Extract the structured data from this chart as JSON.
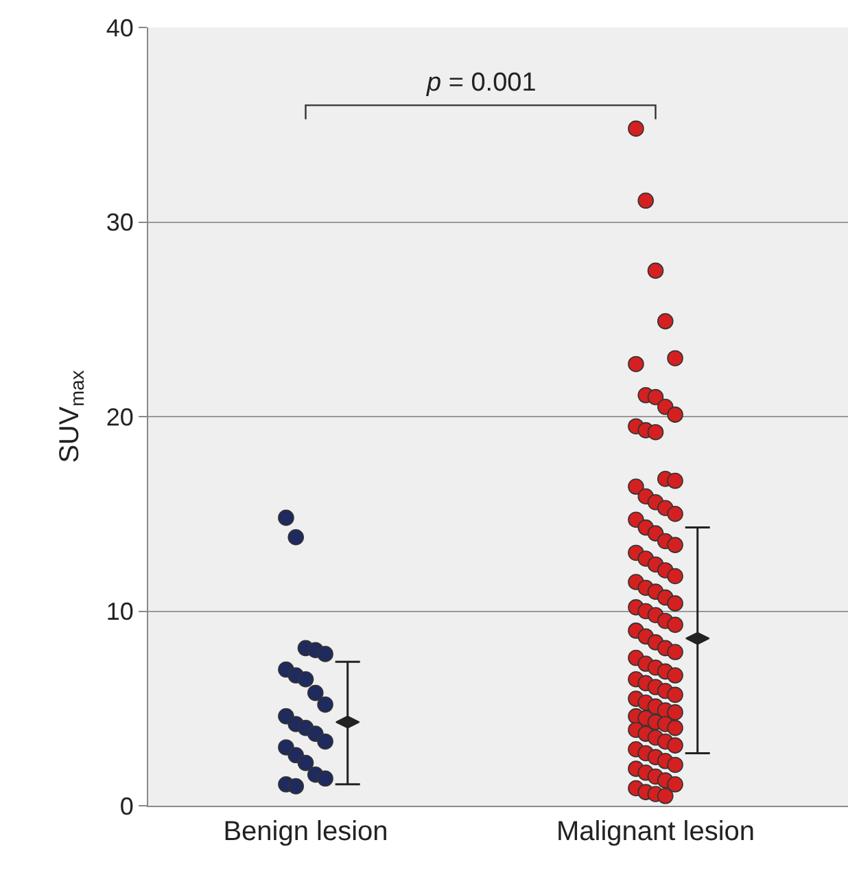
{
  "chart_data": {
    "type": "scatter",
    "ylabel": "SUV$_{max}$",
    "categories": [
      "Benign lesion",
      "Malignant lesion"
    ],
    "ylim": [
      0,
      40
    ],
    "yticks": [
      0,
      10,
      20,
      30,
      40
    ],
    "grid": "y",
    "marker": "circle",
    "annotations": [
      "p = 0.001"
    ],
    "series": [
      {
        "type": "scatter",
        "color": "#1f2a5e",
        "x": [
          "Benign lesion",
          "Benign lesion",
          "Benign lesion",
          "Benign lesion",
          "Benign lesion",
          "Benign lesion",
          "Benign lesion",
          "Benign lesion",
          "Benign lesion",
          "Benign lesion",
          "Benign lesion",
          "Benign lesion",
          "Benign lesion",
          "Benign lesion",
          "Benign lesion",
          "Benign lesion",
          "Benign lesion",
          "Benign lesion",
          "Benign lesion",
          "Benign lesion",
          "Benign lesion",
          "Benign lesion"
        ],
        "values": [
          14.8,
          13.8,
          8.1,
          8.0,
          7.8,
          7.0,
          6.7,
          6.5,
          5.8,
          5.2,
          4.6,
          4.2,
          4.0,
          3.7,
          3.3,
          3.0,
          2.6,
          2.2,
          1.6,
          1.4,
          1.1,
          1.0
        ]
      },
      {
        "type": "scatter",
        "color": "#d42020",
        "x": [
          "Malignant lesion",
          "Malignant lesion",
          "Malignant lesion",
          "Malignant lesion",
          "Malignant lesion",
          "Malignant lesion",
          "Malignant lesion",
          "Malignant lesion",
          "Malignant lesion",
          "Malignant lesion",
          "Malignant lesion",
          "Malignant lesion",
          "Malignant lesion",
          "Malignant lesion",
          "Malignant lesion",
          "Malignant lesion",
          "Malignant lesion",
          "Malignant lesion",
          "Malignant lesion",
          "Malignant lesion",
          "Malignant lesion",
          "Malignant lesion",
          "Malignant lesion",
          "Malignant lesion",
          "Malignant lesion",
          "Malignant lesion",
          "Malignant lesion",
          "Malignant lesion",
          "Malignant lesion",
          "Malignant lesion",
          "Malignant lesion",
          "Malignant lesion",
          "Malignant lesion",
          "Malignant lesion",
          "Malignant lesion",
          "Malignant lesion",
          "Malignant lesion",
          "Malignant lesion",
          "Malignant lesion",
          "Malignant lesion",
          "Malignant lesion",
          "Malignant lesion",
          "Malignant lesion",
          "Malignant lesion",
          "Malignant lesion",
          "Malignant lesion",
          "Malignant lesion",
          "Malignant lesion",
          "Malignant lesion",
          "Malignant lesion",
          "Malignant lesion",
          "Malignant lesion",
          "Malignant lesion",
          "Malignant lesion",
          "Malignant lesion",
          "Malignant lesion",
          "Malignant lesion",
          "Malignant lesion",
          "Malignant lesion",
          "Malignant lesion",
          "Malignant lesion",
          "Malignant lesion",
          "Malignant lesion",
          "Malignant lesion",
          "Malignant lesion",
          "Malignant lesion",
          "Malignant lesion",
          "Malignant lesion",
          "Malignant lesion",
          "Malignant lesion",
          "Malignant lesion",
          "Malignant lesion",
          "Malignant lesion",
          "Malignant lesion",
          "Malignant lesion",
          "Malignant lesion",
          "Malignant lesion",
          "Malignant lesion",
          "Malignant lesion",
          "Malignant lesion",
          "Malignant lesion",
          "Malignant lesion",
          "Malignant lesion",
          "Malignant lesion"
        ],
        "values": [
          34.8,
          31.1,
          27.5,
          24.9,
          23.0,
          22.7,
          21.1,
          21.0,
          20.5,
          20.1,
          19.5,
          19.3,
          19.2,
          16.8,
          16.7,
          16.4,
          15.9,
          15.6,
          15.3,
          15.0,
          14.7,
          14.3,
          14.0,
          13.6,
          13.4,
          13.0,
          12.7,
          12.4,
          12.1,
          11.8,
          11.5,
          11.2,
          11.0,
          10.7,
          10.4,
          10.2,
          10.0,
          9.8,
          9.5,
          9.3,
          9.0,
          8.7,
          8.4,
          8.1,
          7.9,
          7.6,
          7.3,
          7.1,
          6.9,
          6.7,
          6.5,
          6.3,
          6.1,
          5.9,
          5.7,
          5.5,
          5.3,
          5.1,
          4.9,
          4.8,
          4.6,
          4.5,
          4.3,
          4.2,
          4.0,
          3.9,
          3.7,
          3.5,
          3.3,
          3.1,
          2.9,
          2.7,
          2.5,
          2.3,
          2.1,
          1.9,
          1.7,
          1.5,
          1.3,
          1.1,
          0.9,
          0.7,
          0.6,
          0.5
        ]
      },
      {
        "type": "scatter",
        "color": "#222222",
        "marker": "diamond",
        "x": [
          "Benign lesion",
          "Malignant lesion"
        ],
        "values": [
          4.3,
          8.6
        ],
        "errors": [
          [
            1.1,
            7.4
          ],
          [
            2.7,
            14.3
          ]
        ]
      }
    ]
  }
}
